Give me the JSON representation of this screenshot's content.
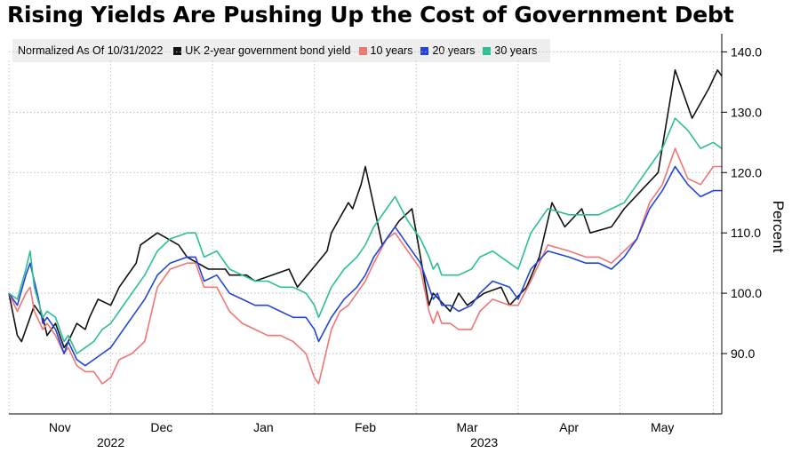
{
  "chart_data": {
    "type": "line",
    "title": "Rising Yields Are Pushing Up the Cost of Government Debt",
    "note": "Normalized As Of 10/31/2022",
    "ylabel": "Percent",
    "ylim": [
      80,
      143
    ],
    "yticks": [
      "90.0",
      "100.0",
      "110.0",
      "120.0",
      "130.0",
      "140.0"
    ],
    "ytick_values": [
      90,
      100,
      110,
      120,
      130,
      140
    ],
    "xlim": [
      0,
      168
    ],
    "month_labels": [
      {
        "label": "Nov",
        "at": 12
      },
      {
        "label": "Dec",
        "at": 36
      },
      {
        "label": "Jan",
        "at": 60
      },
      {
        "label": "Feb",
        "at": 84
      },
      {
        "label": "Mar",
        "at": 108
      },
      {
        "label": "Apr",
        "at": 132
      },
      {
        "label": "May",
        "at": 154
      }
    ],
    "month_bounds": [
      0,
      24,
      48,
      72,
      96,
      120,
      144,
      166
    ],
    "year_labels": [
      {
        "label": "2022",
        "at": 24
      },
      {
        "label": "2023",
        "at": 112
      }
    ],
    "series": [
      {
        "name": "UK 2-year government bond yield",
        "color": "#111111",
        "x": [
          0,
          2,
          3,
          5,
          6,
          8,
          9,
          11,
          13,
          14,
          16,
          18,
          19,
          21,
          24,
          26,
          27,
          30,
          31,
          35,
          40,
          42,
          47,
          51,
          52,
          56,
          58,
          66,
          68,
          75,
          76,
          80,
          81,
          83,
          84,
          88,
          91,
          92,
          95,
          99,
          100,
          104,
          106,
          108,
          112,
          116,
          118,
          122,
          125,
          128,
          131,
          135,
          137,
          142,
          145,
          149,
          153,
          157,
          161,
          165,
          167,
          168
        ],
        "values": [
          100,
          93,
          92,
          96,
          98,
          96,
          93,
          95,
          91,
          92,
          95,
          94,
          96,
          99,
          98,
          101,
          102,
          105,
          108,
          110,
          108,
          106,
          104,
          104,
          103,
          103,
          102,
          104,
          101,
          107,
          110,
          115,
          114,
          118,
          121,
          108,
          111,
          112,
          114,
          98,
          100,
          97,
          100,
          98,
          100,
          101,
          98,
          101,
          106,
          115,
          111,
          114,
          110,
          111,
          114,
          117,
          120,
          137,
          129,
          134,
          137,
          136
        ]
      },
      {
        "name": "10 years",
        "color": "#f07575",
        "x": [
          0,
          2,
          4,
          5,
          6,
          8,
          9,
          11,
          13,
          14,
          16,
          18,
          20,
          22,
          24,
          26,
          29,
          32,
          35,
          38,
          42,
          44,
          46,
          49,
          52,
          55,
          58,
          61,
          64,
          67,
          70,
          72,
          73,
          74,
          76,
          78,
          80,
          82,
          84,
          86,
          89,
          91,
          94,
          97,
          99,
          100,
          101,
          102,
          104,
          106,
          109,
          111,
          114,
          118,
          120,
          123,
          127,
          132,
          136,
          139,
          142,
          145,
          148,
          151,
          154,
          157,
          160,
          163,
          166,
          168
        ],
        "values": [
          100,
          97,
          100,
          101,
          97,
          94,
          95,
          93,
          90,
          91,
          88,
          87,
          87,
          85,
          86,
          89,
          90,
          92,
          101,
          104,
          105,
          105,
          101,
          101,
          97,
          95,
          94,
          93,
          93,
          92,
          90,
          86,
          85,
          88,
          94,
          97,
          98,
          100,
          102,
          105,
          109,
          110,
          107,
          104,
          97,
          95,
          97,
          95,
          95,
          94,
          94,
          97,
          99,
          98,
          98,
          102,
          108,
          107,
          106,
          106,
          105,
          107,
          109,
          115,
          118,
          124,
          119,
          118,
          121,
          121
        ]
      },
      {
        "name": "20 years",
        "color": "#2244dd",
        "x": [
          0,
          2,
          4,
          5,
          7,
          8,
          9,
          11,
          13,
          14,
          16,
          18,
          20,
          22,
          24,
          26,
          29,
          32,
          35,
          38,
          42,
          44,
          46,
          49,
          52,
          55,
          58,
          61,
          64,
          67,
          70,
          72,
          73,
          76,
          79,
          82,
          84,
          86,
          89,
          91,
          94,
          97,
          99,
          100,
          101,
          102,
          104,
          106,
          109,
          111,
          114,
          118,
          120,
          123,
          127,
          132,
          136,
          139,
          142,
          145,
          148,
          151,
          154,
          157,
          160,
          163,
          166,
          168
        ],
        "values": [
          100,
          98,
          103,
          105,
          99,
          95,
          96,
          94,
          90,
          92,
          89,
          88,
          89,
          90,
          91,
          93,
          96,
          99,
          103,
          105,
          106,
          106,
          102,
          103,
          100,
          99,
          98,
          98,
          97,
          96,
          96,
          94,
          92,
          96,
          99,
          101,
          103,
          106,
          109,
          111,
          108,
          105,
          101,
          99,
          100,
          98,
          98,
          97,
          98,
          100,
          102,
          101,
          99,
          104,
          107,
          106,
          105,
          105,
          104,
          106,
          109,
          114,
          117,
          121,
          118,
          116,
          117,
          117
        ]
      },
      {
        "name": "30 years",
        "color": "#2dbf94",
        "x": [
          0,
          2,
          4,
          5,
          6,
          8,
          9,
          11,
          13,
          14,
          16,
          18,
          20,
          22,
          24,
          26,
          29,
          32,
          35,
          38,
          42,
          44,
          46,
          49,
          52,
          55,
          58,
          61,
          64,
          67,
          70,
          72,
          73,
          76,
          79,
          82,
          84,
          86,
          89,
          91,
          94,
          97,
          99,
          100,
          101,
          102,
          104,
          106,
          109,
          111,
          114,
          118,
          120,
          123,
          127,
          132,
          136,
          139,
          142,
          145,
          148,
          151,
          154,
          157,
          160,
          163,
          166,
          168
        ],
        "values": [
          100,
          99,
          104,
          107,
          101,
          96,
          97,
          96,
          92,
          93,
          90,
          91,
          92,
          94,
          95,
          97,
          100,
          103,
          107,
          109,
          110,
          110,
          106,
          107,
          104,
          103,
          102,
          102,
          101,
          101,
          100,
          98,
          96,
          101,
          104,
          106,
          108,
          111,
          114,
          116,
          112,
          109,
          106,
          104,
          105,
          103,
          103,
          103,
          104,
          106,
          107,
          105,
          104,
          110,
          114,
          113,
          113,
          113,
          114,
          115,
          118,
          121,
          124,
          129,
          127,
          124,
          125,
          124
        ]
      }
    ]
  }
}
